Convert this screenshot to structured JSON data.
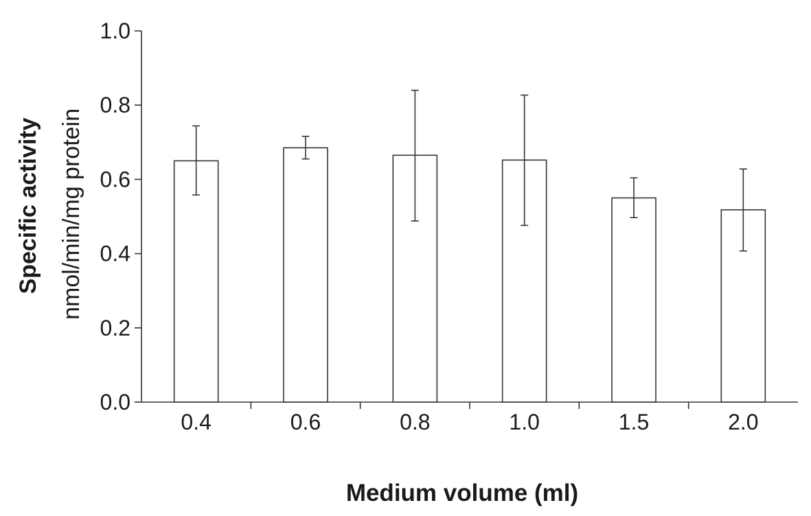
{
  "chart_data": {
    "type": "bar",
    "categories": [
      "0.4",
      "0.6",
      "0.8",
      "1.0",
      "1.5",
      "2.0"
    ],
    "values": [
      0.65,
      0.685,
      0.665,
      0.652,
      0.55,
      0.518
    ],
    "error_low": [
      0.558,
      0.655,
      0.488,
      0.476,
      0.497,
      0.407
    ],
    "error_high": [
      0.744,
      0.716,
      0.84,
      0.827,
      0.604,
      0.628
    ],
    "ylabel_line1": "Specific activity",
    "ylabel_line2": "nmol/min/mg protein",
    "xlabel": "Medium volume (ml)",
    "ylim": [
      0.0,
      1.0
    ],
    "yticks": [
      "0.0",
      "0.2",
      "0.4",
      "0.6",
      "0.8",
      "1.0"
    ],
    "grid": false,
    "bar_color": "#ffffff",
    "line_color": "#333333"
  }
}
